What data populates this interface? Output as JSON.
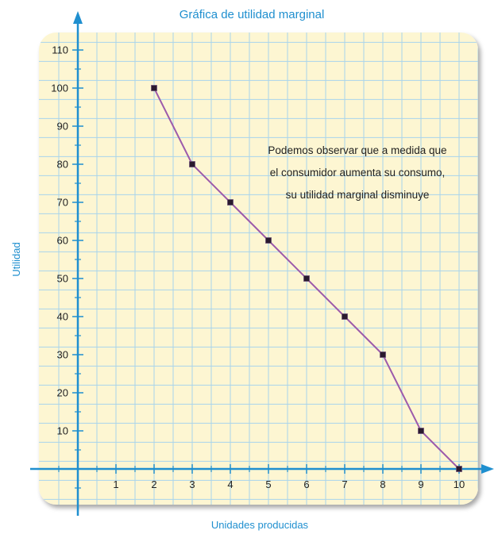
{
  "chart_data": {
    "type": "line",
    "title": "Gráfica de utilidad marginal",
    "xlabel": "Unidades producidas",
    "ylabel": "Utilidad",
    "x": [
      2,
      3,
      4,
      5,
      6,
      7,
      8,
      9,
      10
    ],
    "y": [
      100,
      80,
      70,
      60,
      50,
      40,
      30,
      10,
      0
    ],
    "xlim": [
      -0.5,
      10.5
    ],
    "ylim": [
      -8,
      112
    ],
    "x_ticks": [
      "1",
      "2",
      "3",
      "4",
      "5",
      "6",
      "7",
      "8",
      "9",
      "10"
    ],
    "y_ticks": [
      "10",
      "20",
      "30",
      "40",
      "50",
      "60",
      "70",
      "80",
      "90",
      "100",
      "110"
    ],
    "grid": true,
    "annotation_lines": [
      "Podemos observar que a medida que",
      "el consumidor aumenta su consumo,",
      "su utilidad marginal disminuye"
    ],
    "colors": {
      "axis": "#1f8fcf",
      "grid": "#a8d4ec",
      "background": "#fdf6d2",
      "line": "#9d5bab",
      "marker": "#2a1a2e"
    }
  }
}
